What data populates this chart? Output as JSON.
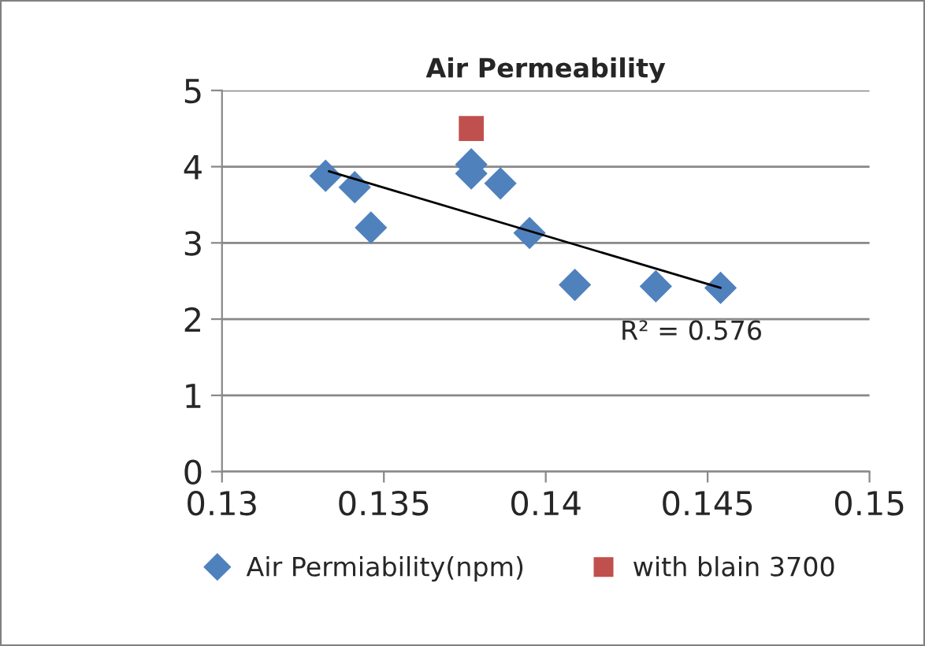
{
  "chart_data": {
    "type": "scatter",
    "title": "Air Permeability",
    "xlim": [
      0.13,
      0.15
    ],
    "xticks": [
      0.13,
      0.135,
      0.14,
      0.145,
      0.15
    ],
    "ylim": [
      0,
      5
    ],
    "yticks": [
      0,
      1,
      2,
      3,
      4,
      5
    ],
    "grid": "y",
    "legend": "bottom",
    "series": [
      {
        "name": "Air Permiability(npm)",
        "color": "#4f81bd",
        "marker": "diamond",
        "x": [
          0.1332,
          0.1341,
          0.1346,
          0.1377,
          0.1377,
          0.1386,
          0.1395,
          0.1409,
          0.1434,
          0.1454
        ],
        "values": [
          3.88,
          3.73,
          3.2,
          4.03,
          3.91,
          3.78,
          3.13,
          2.45,
          2.43,
          2.41
        ]
      },
      {
        "name": "with blain 3700",
        "color": "#c0504d",
        "marker": "square",
        "x": [
          0.1377
        ],
        "values": [
          4.5
        ]
      },
      {
        "type": "line",
        "color": "#000000",
        "marker": "none",
        "x": [
          0.1333,
          0.1454
        ],
        "values": [
          3.94,
          2.41
        ]
      }
    ],
    "annotations": [
      "R² = 0.576"
    ]
  }
}
